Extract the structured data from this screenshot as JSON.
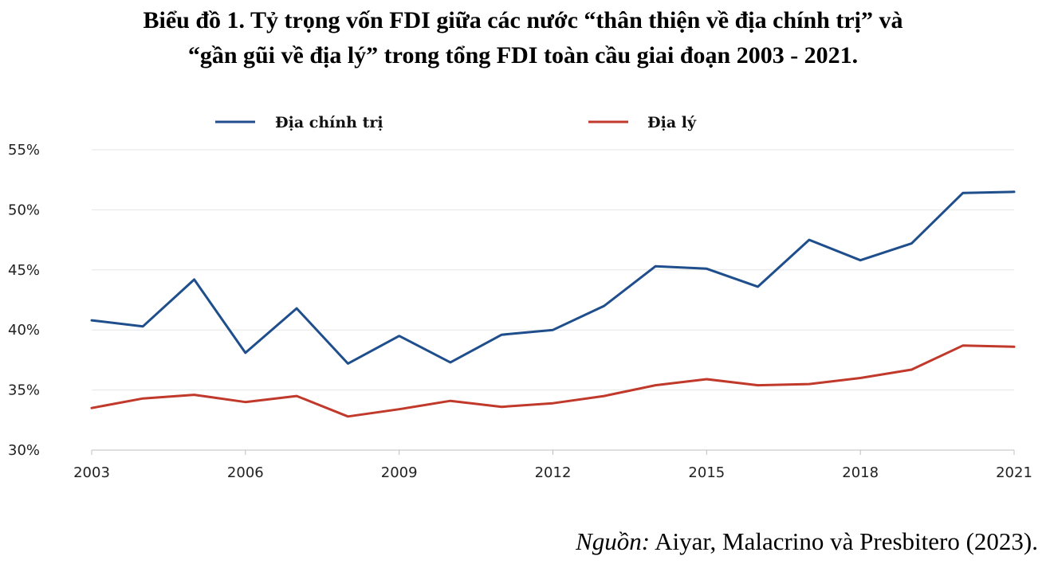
{
  "figure": {
    "title_line1": "Biểu đồ 1. Tỷ trọng vốn FDI giữa các nước “thân thiện về địa chính trị” và",
    "title_line2": "“gần gũi về địa lý” trong tổng FDI toàn cầu giai đoạn 2003 - 2021.",
    "source_label": "Nguồn:",
    "source_text": " Aiyar, Malacrino và Presbitero (2023)."
  },
  "chart_data": {
    "type": "line",
    "x": [
      2003,
      2004,
      2005,
      2006,
      2007,
      2008,
      2009,
      2010,
      2011,
      2012,
      2013,
      2014,
      2015,
      2016,
      2017,
      2018,
      2019,
      2020,
      2021
    ],
    "series": [
      {
        "name": "Địa chính trị",
        "color": "#1f4e8c",
        "values": [
          40.8,
          40.3,
          44.2,
          38.1,
          41.8,
          37.2,
          39.5,
          37.3,
          39.6,
          40.0,
          42.0,
          45.3,
          45.1,
          43.6,
          47.5,
          45.8,
          47.2,
          51.4,
          51.5
        ]
      },
      {
        "name": "Địa lý",
        "color": "#c0392b",
        "values": [
          33.5,
          34.3,
          34.6,
          34.0,
          34.5,
          32.8,
          33.4,
          34.1,
          33.6,
          33.9,
          34.5,
          35.4,
          35.9,
          35.4,
          35.5,
          36.0,
          36.7,
          38.7,
          38.6
        ]
      }
    ],
    "x_ticks": [
      "2003",
      "2006",
      "2009",
      "2012",
      "2015",
      "2018",
      "2021"
    ],
    "y_ticks": [
      "30%",
      "35%",
      "40%",
      "45%",
      "50%",
      "55%"
    ],
    "xlim": [
      2003,
      2021
    ],
    "ylim": [
      30,
      55
    ],
    "grid": true,
    "legend_position": "top"
  }
}
